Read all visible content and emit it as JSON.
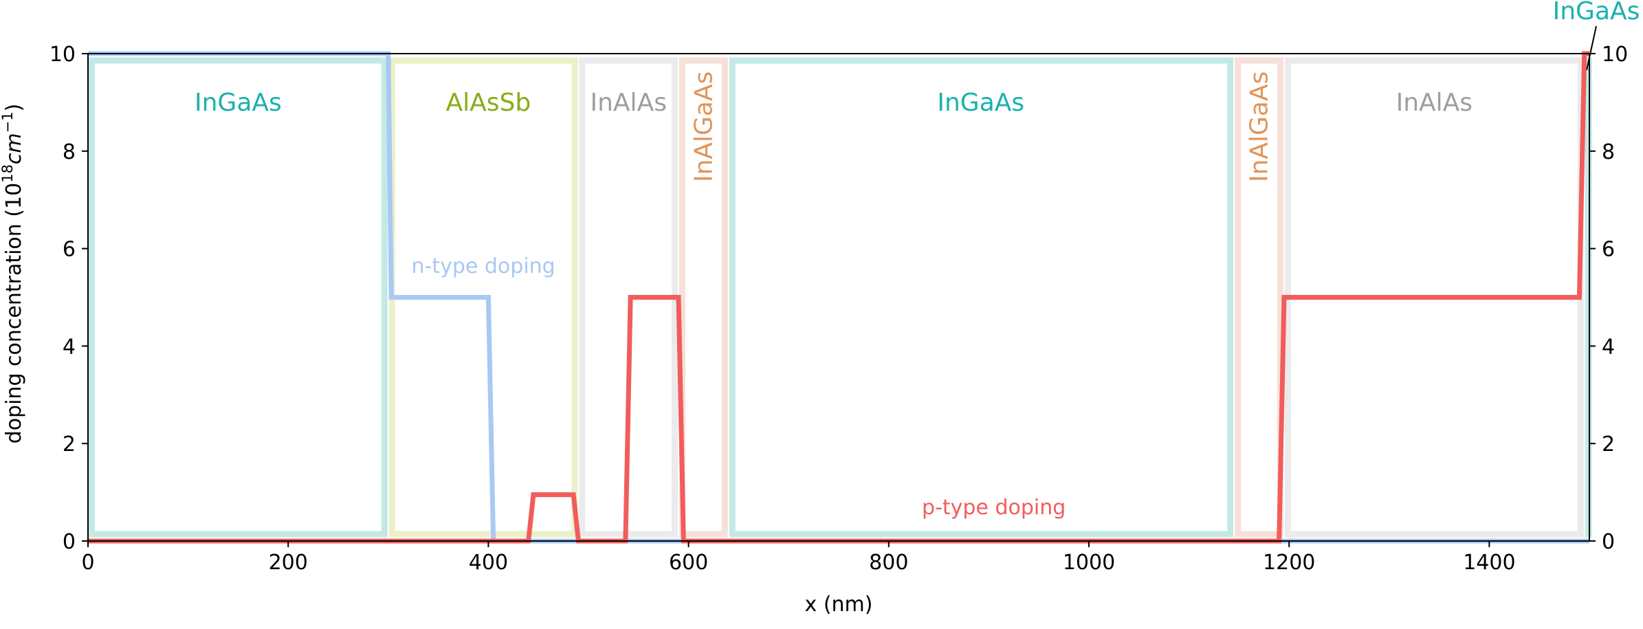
{
  "chart_data": {
    "type": "line",
    "xlabel": "x (nm)",
    "ylabel_main": "doping concentration (10",
    "ylabel_sup1": "18",
    "ylabel_unit": "cm",
    "ylabel_sup2": "−1",
    "ylabel_close": ")",
    "xlim": [
      0,
      1500
    ],
    "ylim": [
      0,
      10
    ],
    "xticks": [
      0,
      200,
      400,
      600,
      800,
      1000,
      1200,
      1400
    ],
    "yticks": [
      0,
      2,
      4,
      6,
      8,
      10
    ],
    "layers": [
      {
        "name": "InGaAs",
        "x0": 0,
        "x1": 300,
        "color": "#c3e9e6",
        "label_color": "#19b1ad",
        "label_x": 150,
        "label_y": 9.0,
        "vertical": false
      },
      {
        "name": "AlAsSb",
        "x0": 300,
        "x1": 490,
        "color": "#eaf0c8",
        "label_color": "#8aab17",
        "label_x": 400,
        "label_y": 9.0,
        "vertical": false
      },
      {
        "name": "InAlAs",
        "x0": 490,
        "x1": 590,
        "color": "#ebebeb",
        "label_color": "#9e9e9e",
        "label_x": 540,
        "label_y": 9.0,
        "vertical": false
      },
      {
        "name": "InAlGaAs",
        "x0": 590,
        "x1": 640,
        "color": "#f6e0d8",
        "label_color": "#e0955a",
        "label_x": 615,
        "label_y": 8.5,
        "vertical": true
      },
      {
        "name": "InGaAs",
        "x0": 640,
        "x1": 1145,
        "color": "#c3e9e6",
        "label_color": "#19b1ad",
        "label_x": 892,
        "label_y": 9.0,
        "vertical": false
      },
      {
        "name": "InAlGaAs",
        "x0": 1145,
        "x1": 1195,
        "color": "#f6e0d8",
        "label_color": "#e0955a",
        "label_x": 1170,
        "label_y": 8.5,
        "vertical": true
      },
      {
        "name": "InAlAs",
        "x0": 1195,
        "x1": 1495,
        "color": "#ebebeb",
        "label_color": "#9e9e9e",
        "label_x": 1345,
        "label_y": 9.0,
        "vertical": false
      },
      {
        "name": "InGaAs",
        "x0": 1495,
        "x1": 1500,
        "color": "#c3e9e6",
        "label_color": "#19b1ad",
        "label_x": 1500,
        "label_y": 10.9,
        "vertical": false
      }
    ],
    "series": [
      {
        "name": "n-type doping",
        "color": "#a8c8f5",
        "x": [
          0,
          300,
          303,
          400,
          405,
          1500
        ],
        "y": [
          10,
          10,
          5,
          5,
          0,
          0
        ],
        "label_x": 395,
        "label_y": 5.5
      },
      {
        "name": "p-type doping",
        "color": "#f25c5c",
        "x": [
          0,
          440,
          445,
          485,
          490,
          537,
          542,
          590,
          595,
          1190,
          1195,
          1490,
          1495,
          1500
        ],
        "y": [
          0,
          0,
          0.95,
          0.95,
          0,
          0,
          5,
          5,
          0,
          0,
          5,
          5,
          10,
          10
        ],
        "label_x": 905,
        "label_y": 0.55
      }
    ]
  }
}
